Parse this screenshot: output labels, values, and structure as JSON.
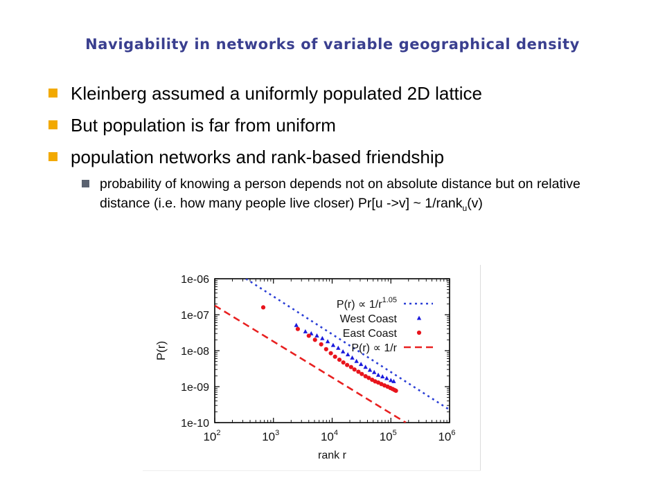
{
  "slide": {
    "title": "Navigability in networks of variable geographical density",
    "accent_color": "#3a3f8f",
    "bullet_color": "#f2a900",
    "sub_bullet_color": "#5a6270",
    "bullets": [
      "Kleinberg assumed a uniformly populated 2D lattice",
      "But population is far from uniform",
      "population networks and rank-based friendship"
    ],
    "sub_bullet": {
      "text_main": "probability of knowing a person depends not on absolute distance but on relative distance (i.e. how many people live closer)  Pr[u ->v] ~ 1/rank",
      "subscript": "u",
      "text_end": "(v)"
    }
  },
  "chart_data": {
    "type": "scatter",
    "x_scale": "log",
    "y_scale": "log",
    "xlim": [
      100,
      1000000
    ],
    "ylim": [
      1e-10,
      1e-06
    ],
    "xlabel": "rank r",
    "ylabel": "P(r)",
    "x_ticks": [
      {
        "value": 100,
        "base": "10",
        "exp": "2"
      },
      {
        "value": 1000,
        "base": "10",
        "exp": "3"
      },
      {
        "value": 10000,
        "base": "10",
        "exp": "4"
      },
      {
        "value": 100000,
        "base": "10",
        "exp": "5"
      },
      {
        "value": 1000000,
        "base": "10",
        "exp": "6"
      }
    ],
    "y_ticks": [
      {
        "value": 1e-06,
        "label": "1e-06"
      },
      {
        "value": 1e-07,
        "label": "1e-07"
      },
      {
        "value": 1e-08,
        "label": "1e-08"
      },
      {
        "value": 1e-09,
        "label": "1e-09"
      },
      {
        "value": 1e-10,
        "label": "1e-10"
      }
    ],
    "grid": false,
    "legend_position": "top-right",
    "series": [
      {
        "key": "fit_105",
        "kind": "line",
        "style": "dotted",
        "color": "#2b3fd6",
        "legend": {
          "prefix": "P(r) ∝ 1/r",
          "superscript": "1.05"
        },
        "x": [
          340,
          1000000
        ],
        "y": [
          1e-06,
          2.27e-10
        ]
      },
      {
        "key": "west_coast",
        "kind": "markers",
        "marker": "triangle",
        "color": "#1a1adc",
        "legend": {
          "prefix": "West Coast",
          "superscript": ""
        },
        "x": [
          2450,
          3500,
          4400,
          5500,
          6800,
          8400,
          10400,
          12700,
          15300,
          18500,
          22000,
          26000,
          31000,
          37000,
          44000,
          52000,
          61000,
          72000,
          85000,
          100000,
          112000
        ],
        "y": [
          5.1e-08,
          3.4e-08,
          3e-08,
          2.6e-08,
          2.2e-08,
          1.8e-08,
          1.42e-08,
          1.18e-08,
          9.4e-09,
          7.8e-09,
          6.3e-09,
          5.1e-09,
          4.2e-09,
          3.5e-09,
          2.9e-09,
          2.5e-09,
          2.1e-09,
          1.9e-09,
          1.7e-09,
          1.5e-09,
          1.4e-09
        ]
      },
      {
        "key": "east_coast",
        "kind": "markers",
        "marker": "circle",
        "color": "#e8141c",
        "legend": {
          "prefix": "East Coast",
          "superscript": ""
        },
        "x": [
          670,
          2600,
          4000,
          5100,
          6500,
          7900,
          9500,
          11200,
          13300,
          15500,
          18000,
          21000,
          24000,
          28000,
          32000,
          37000,
          42000,
          48000,
          54000,
          61000,
          69000,
          78000,
          88000,
          98000,
          107000,
          115000,
          122000
        ],
        "y": [
          1.6e-07,
          4e-08,
          2.6e-08,
          2e-08,
          1.5e-08,
          1.1e-08,
          8.5e-09,
          6.8e-09,
          5.6e-09,
          4.7e-09,
          4e-09,
          3.5e-09,
          3e-09,
          2.6e-09,
          2.25e-09,
          1.95e-09,
          1.75e-09,
          1.55e-09,
          1.4e-09,
          1.3e-09,
          1.18e-09,
          1.08e-09,
          1e-09,
          9.2e-10,
          8.6e-10,
          8.1e-10,
          7.7e-10
        ]
      },
      {
        "key": "fit_1",
        "kind": "line",
        "style": "dashed",
        "color": "#e82020",
        "legend": {
          "prefix": "P(r) ∝ 1/r",
          "superscript": ""
        },
        "x": [
          100,
          180000
        ],
        "y": [
          1.8e-07,
          1e-10
        ]
      }
    ]
  }
}
